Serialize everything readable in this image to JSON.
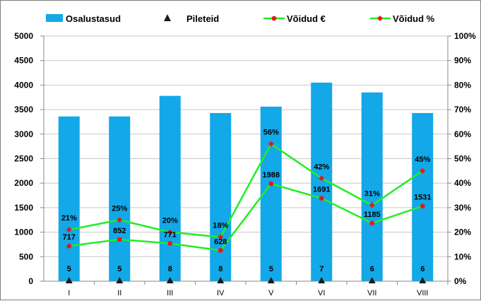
{
  "chart_data": {
    "type": "bar",
    "categories": [
      "I",
      "II",
      "III",
      "IV",
      "V",
      "VI",
      "VII",
      "VIII"
    ],
    "series": [
      {
        "name": "Osalustasud",
        "type": "bar",
        "axis": "left",
        "color": "#13a8e8",
        "values": [
          3360,
          3360,
          3780,
          3430,
          3560,
          4050,
          3850,
          3430
        ],
        "labels": []
      },
      {
        "name": "Pileteid",
        "type": "marker",
        "axis": "left",
        "color": "#1a1a1a",
        "values": [
          5,
          5,
          8,
          8,
          5,
          7,
          6,
          6
        ],
        "labels": [
          "5",
          "5",
          "8",
          "8",
          "5",
          "7",
          "6",
          "6"
        ]
      },
      {
        "name": "Võidud €",
        "type": "line",
        "axis": "left",
        "color": "#22ee22",
        "values": [
          717,
          852,
          771,
          628,
          1988,
          1691,
          1185,
          1531
        ],
        "labels": [
          "717",
          "852",
          "771",
          "628",
          "1988",
          "1691",
          "1185",
          "1531"
        ]
      },
      {
        "name": "Võidud %",
        "type": "line",
        "axis": "right",
        "color": "#22ee22",
        "values": [
          21,
          25,
          20,
          18,
          56,
          42,
          31,
          45
        ],
        "labels": [
          "21%",
          "25%",
          "20%",
          "18%",
          "56%",
          "42%",
          "31%",
          "45%"
        ]
      }
    ],
    "y_left": {
      "min": 0,
      "max": 5000,
      "step": 500,
      "tick_labels": [
        "0",
        "500",
        "1000",
        "1500",
        "2000",
        "2500",
        "3000",
        "3500",
        "4000",
        "4500",
        "5000"
      ]
    },
    "y_right": {
      "min": 0,
      "max": 100,
      "step": 10,
      "tick_labels": [
        "0%",
        "10%",
        "20%",
        "30%",
        "40%",
        "50%",
        "60%",
        "70%",
        "80%",
        "90%",
        "100%"
      ]
    },
    "grid": true,
    "legend_position": "top"
  }
}
